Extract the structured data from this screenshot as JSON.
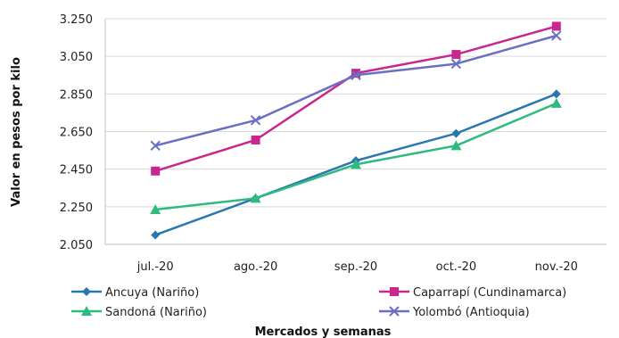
{
  "chart_data": {
    "type": "line",
    "title": "",
    "xlabel": "Mercados y semanas",
    "ylabel": "Valor en pesos por kilo",
    "categories": [
      "jul.-20",
      "ago.-20",
      "sep.-20",
      "oct.-20",
      "nov.-20"
    ],
    "ylim": [
      2050,
      3250
    ],
    "yticks": [
      2050,
      2250,
      2450,
      2650,
      2850,
      3050,
      3250
    ],
    "ytick_labels": [
      "2.050",
      "2.250",
      "2.450",
      "2.650",
      "2.850",
      "3.050",
      "3.250"
    ],
    "grid": "horizontal",
    "legend_position": "bottom",
    "series": [
      {
        "name": "Ancuya (Nariño)",
        "values": [
          2100,
          2295,
          2495,
          2640,
          2850
        ],
        "color": "#2a77b0",
        "marker": "diamond"
      },
      {
        "name": "Caparrapí (Cundinamarca)",
        "values": [
          2440,
          2605,
          2960,
          3060,
          3210
        ],
        "color": "#c8288e",
        "marker": "square"
      },
      {
        "name": "Sandoná (Nariño)",
        "values": [
          2235,
          2295,
          2475,
          2575,
          2800
        ],
        "color": "#2fbb80",
        "marker": "triangle"
      },
      {
        "name": "Yolombó (Antioquia)",
        "values": [
          2575,
          2710,
          2950,
          3010,
          3160
        ],
        "color": "#6b6fc4",
        "marker": "x"
      }
    ]
  }
}
